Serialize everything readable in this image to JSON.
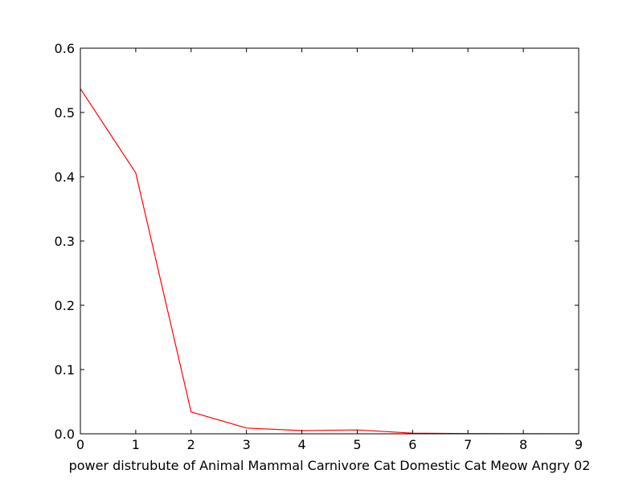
{
  "chart_data": {
    "type": "line",
    "title": "",
    "xlabel": "power distrubute of Animal Mammal Carnivore Cat Domestic Cat Meow Angry 02",
    "ylabel": "",
    "xlim": [
      0,
      9
    ],
    "ylim": [
      0,
      0.6
    ],
    "xticks": [
      0,
      1,
      2,
      3,
      4,
      5,
      6,
      7,
      8,
      9
    ],
    "yticks": [
      0.0,
      0.1,
      0.2,
      0.3,
      0.4,
      0.5,
      0.6
    ],
    "xtick_labels": [
      "0",
      "1",
      "2",
      "3",
      "4",
      "5",
      "6",
      "7",
      "8",
      "9"
    ],
    "ytick_labels": [
      "0.0",
      "0.1",
      "0.2",
      "0.3",
      "0.4",
      "0.5",
      "0.6"
    ],
    "grid": false,
    "legend": "none",
    "series": [
      {
        "color": "#ff0000",
        "x": [
          0,
          1,
          2,
          3,
          4,
          5,
          6,
          7,
          8,
          9
        ],
        "y": [
          0.537,
          0.406,
          0.034,
          0.009,
          0.005,
          0.006,
          0.001,
          0.0003,
          0.0002,
          0.0001
        ]
      }
    ]
  }
}
